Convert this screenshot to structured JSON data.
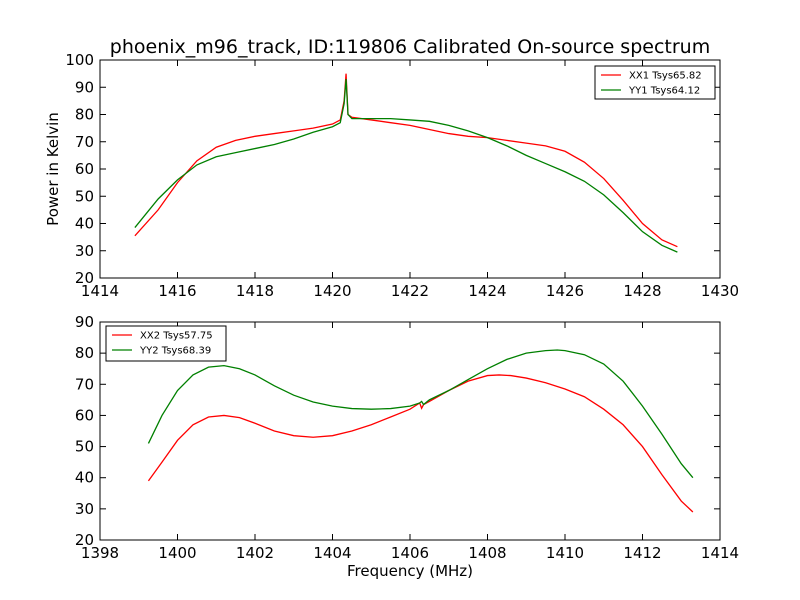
{
  "chart_data": {
    "title": "phoenix_m96_track, ID:119806 Calibrated On-source spectrum",
    "xlabel": "Frequency (MHz)",
    "panels": [
      {
        "type": "line",
        "ylabel": "Power in Kelvin",
        "xlim": [
          1414,
          1430
        ],
        "ylim": [
          20,
          100
        ],
        "xticks": [
          1414,
          1416,
          1418,
          1420,
          1422,
          1424,
          1426,
          1428,
          1430
        ],
        "yticks": [
          20,
          30,
          40,
          50,
          60,
          70,
          80,
          90,
          100
        ],
        "legend": "top-right",
        "series": [
          {
            "name": "XX1 Tsys65.82",
            "color": "#ff0000",
            "x": [
              1414.9,
              1415.5,
              1416.0,
              1416.5,
              1417.0,
              1417.5,
              1418.0,
              1418.5,
              1419.0,
              1419.5,
              1420.0,
              1420.2,
              1420.3,
              1420.35,
              1420.4,
              1420.5,
              1421.0,
              1421.5,
              1422.0,
              1422.5,
              1423.0,
              1423.5,
              1424.0,
              1424.5,
              1425.0,
              1425.5,
              1426.0,
              1426.5,
              1427.0,
              1427.5,
              1428.0,
              1428.5,
              1428.9
            ],
            "y": [
              35.5,
              45,
              55,
              63,
              68,
              70.5,
              72,
              73,
              74,
              75,
              76.5,
              78,
              85,
              95,
              80,
              79,
              78,
              77,
              76,
              74.5,
              73,
              72,
              71.5,
              70.5,
              69.5,
              68.5,
              66.5,
              62.5,
              56.5,
              48.5,
              40,
              34,
              31.5
            ]
          },
          {
            "name": "YY1 Tsys64.12",
            "color": "#008000",
            "x": [
              1414.9,
              1415.5,
              1416.0,
              1416.5,
              1417.0,
              1417.5,
              1418.0,
              1418.5,
              1419.0,
              1419.5,
              1420.0,
              1420.2,
              1420.3,
              1420.35,
              1420.4,
              1420.5,
              1421.0,
              1421.5,
              1422.0,
              1422.5,
              1423.0,
              1423.5,
              1424.0,
              1424.5,
              1425.0,
              1425.5,
              1426.0,
              1426.5,
              1427.0,
              1427.5,
              1428.0,
              1428.5,
              1428.9
            ],
            "y": [
              38.5,
              49,
              56,
              61.5,
              64.5,
              66,
              67.5,
              69,
              71,
              73.5,
              75.5,
              77,
              84,
              93,
              80,
              78.5,
              78.5,
              78.5,
              78,
              77.5,
              76,
              74,
              71.5,
              68.5,
              65,
              62,
              59,
              55.5,
              50.5,
              44,
              37,
              32,
              29.5
            ]
          }
        ]
      },
      {
        "type": "line",
        "ylabel": "",
        "xlim": [
          1398,
          1414
        ],
        "ylim": [
          20,
          90
        ],
        "xticks": [
          1398,
          1400,
          1402,
          1404,
          1406,
          1408,
          1410,
          1412,
          1414
        ],
        "yticks": [
          20,
          30,
          40,
          50,
          60,
          70,
          80,
          90
        ],
        "legend": "top-left",
        "series": [
          {
            "name": "XX2 Tsys57.75",
            "color": "#ff0000",
            "x": [
              1399.25,
              1399.6,
              1400.0,
              1400.4,
              1400.8,
              1401.2,
              1401.6,
              1402.0,
              1402.5,
              1403.0,
              1403.5,
              1404.0,
              1404.5,
              1405.0,
              1405.5,
              1406.0,
              1406.25,
              1406.3,
              1406.35,
              1406.5,
              1407.0,
              1407.5,
              1408.0,
              1408.3,
              1408.6,
              1409.0,
              1409.5,
              1410.0,
              1410.5,
              1411.0,
              1411.5,
              1412.0,
              1412.5,
              1413.0,
              1413.3
            ],
            "y": [
              39,
              45,
              52,
              57,
              59.5,
              60,
              59.3,
              57.5,
              55,
              53.5,
              53,
              53.5,
              55,
              57,
              59.5,
              62,
              64,
              62.3,
              63.5,
              64.5,
              68,
              71,
              72.8,
              73,
              72.8,
              72,
              70.5,
              68.5,
              66,
              62,
              57,
              50,
              41,
              32.5,
              29
            ]
          },
          {
            "name": "YY2 Tsys68.39",
            "color": "#008000",
            "x": [
              1399.25,
              1399.6,
              1400.0,
              1400.4,
              1400.8,
              1401.2,
              1401.6,
              1402.0,
              1402.5,
              1403.0,
              1403.5,
              1404.0,
              1404.5,
              1405.0,
              1405.5,
              1406.0,
              1406.25,
              1406.3,
              1406.35,
              1406.5,
              1407.0,
              1407.5,
              1408.0,
              1408.5,
              1409.0,
              1409.5,
              1409.8,
              1410.0,
              1410.5,
              1411.0,
              1411.5,
              1412.0,
              1412.5,
              1413.0,
              1413.3
            ],
            "y": [
              51,
              60,
              68,
              73,
              75.5,
              76,
              75,
              73,
              69.5,
              66.5,
              64.3,
              63,
              62.2,
              62,
              62.2,
              63,
              64,
              64.5,
              63.5,
              65,
              68,
              71.5,
              75,
              78,
              80,
              80.8,
              81,
              80.8,
              79.5,
              76.5,
              71,
              63,
              54,
              44.5,
              40
            ]
          }
        ]
      }
    ]
  }
}
